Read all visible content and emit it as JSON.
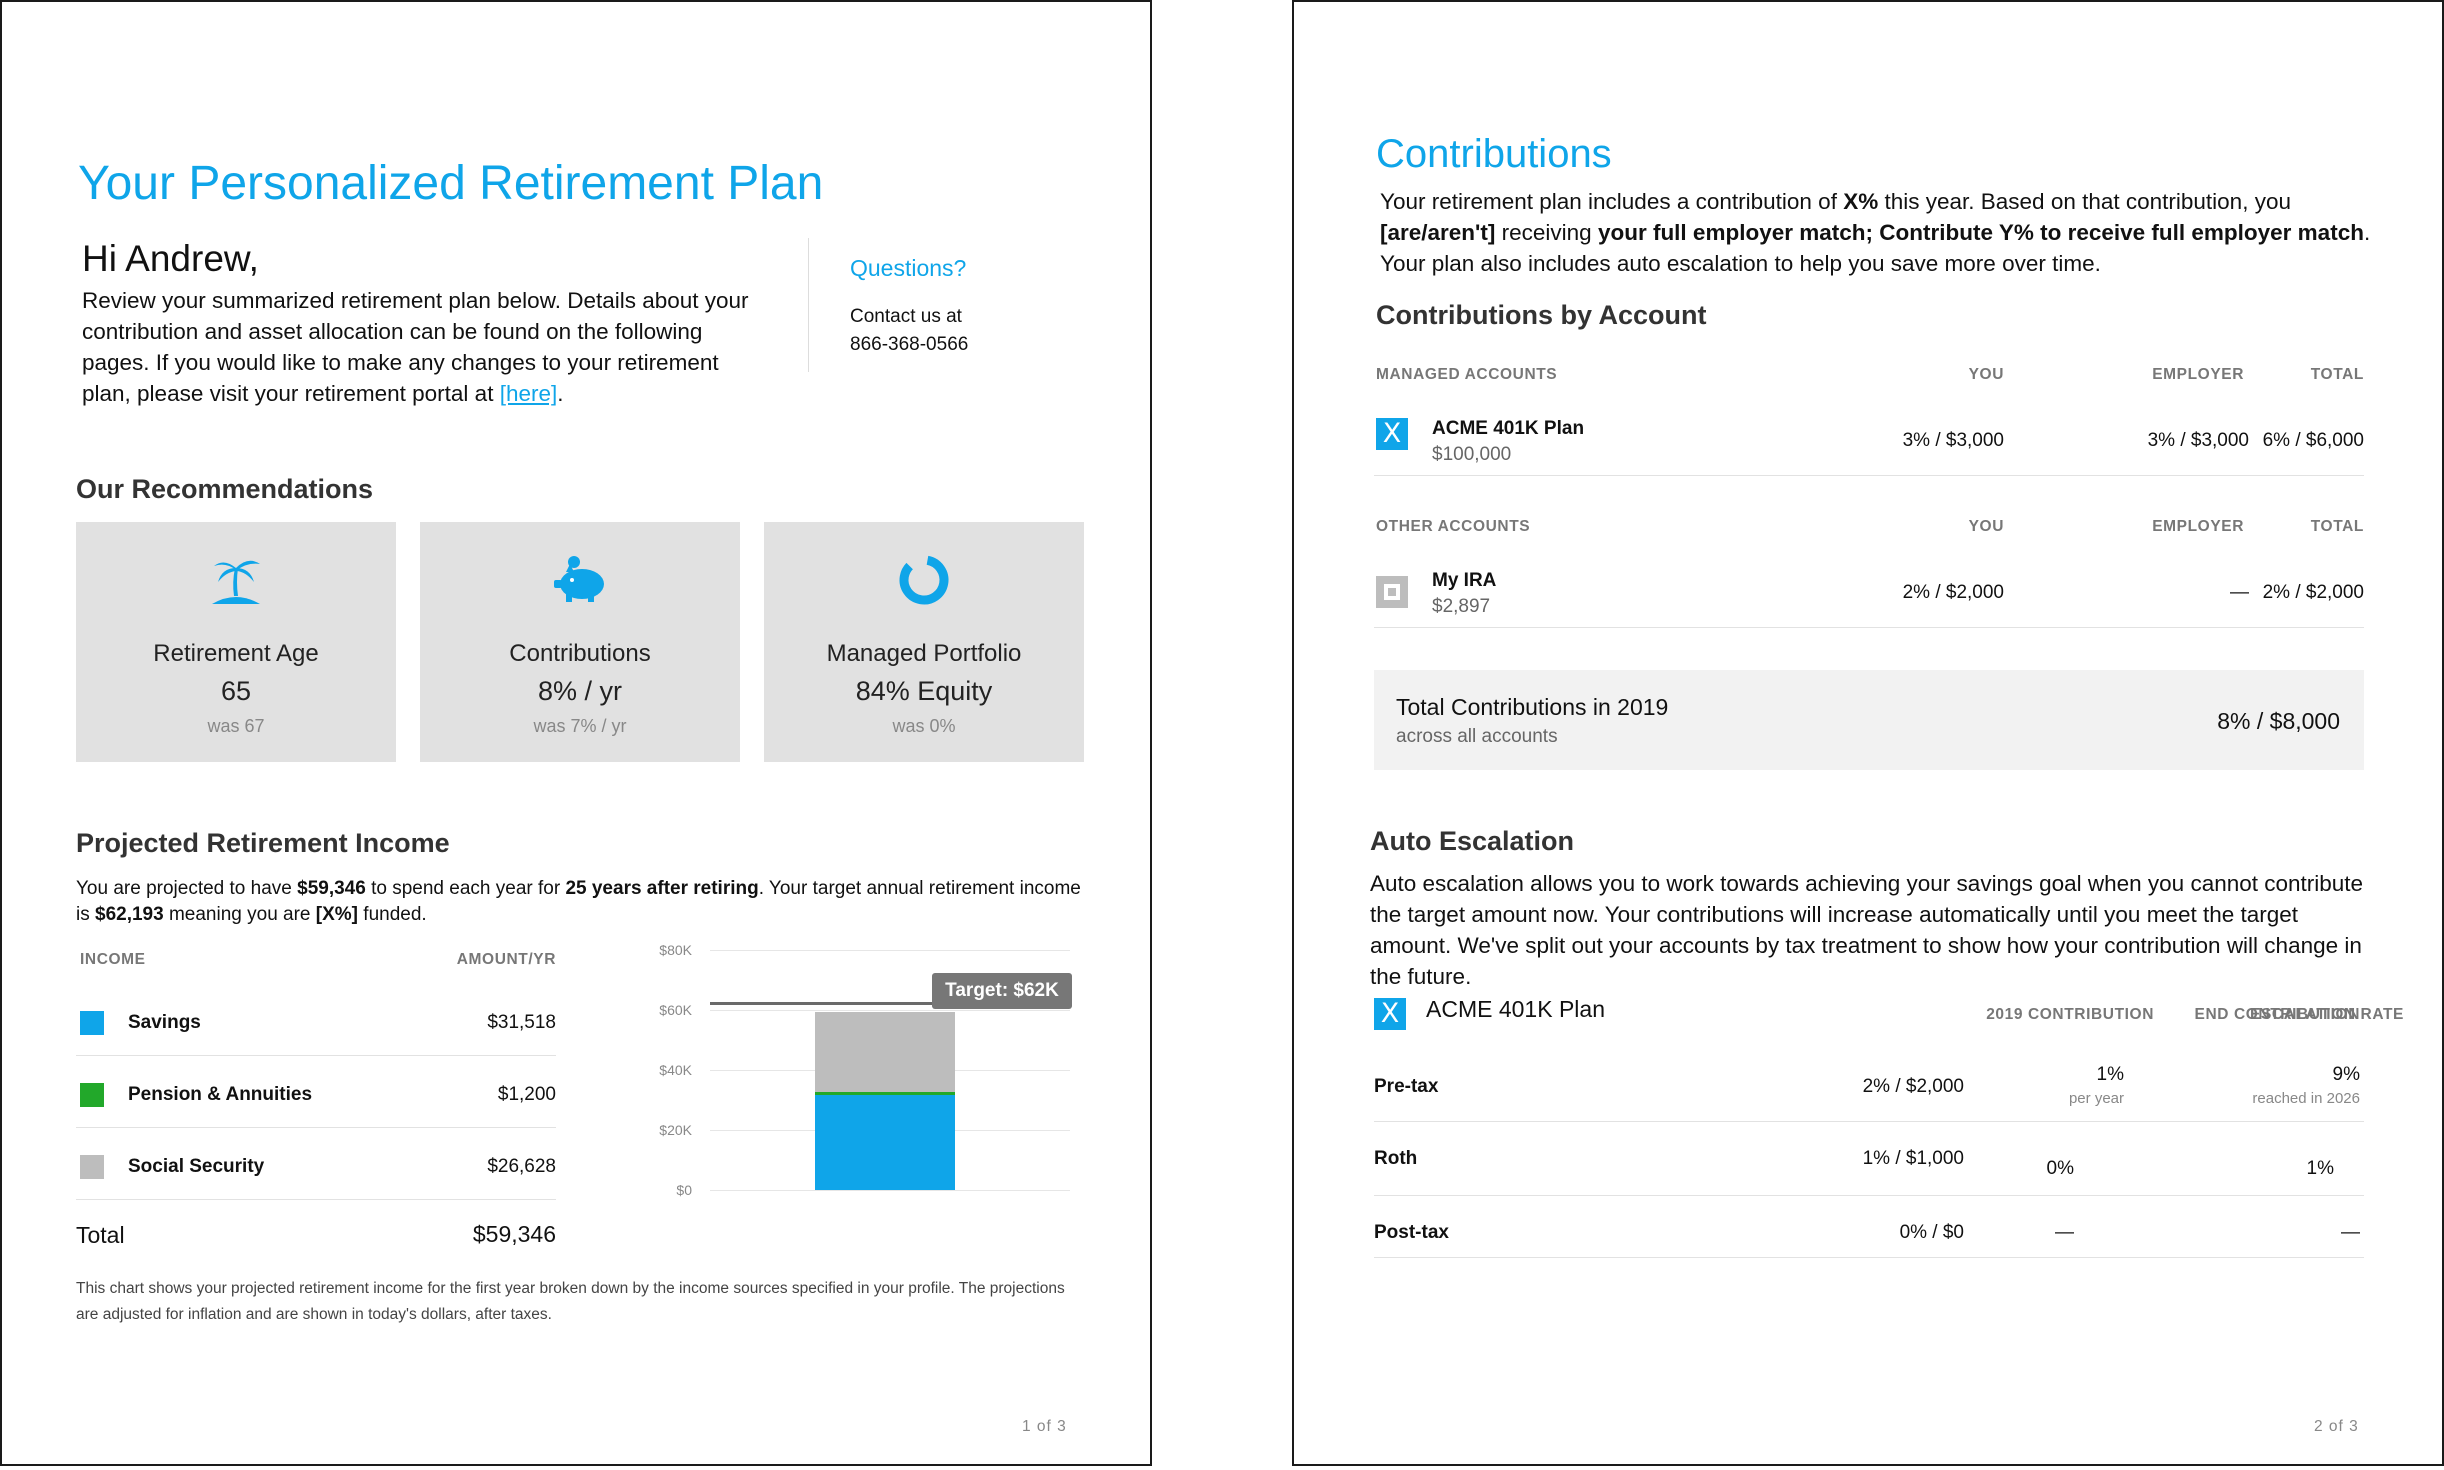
{
  "page1": {
    "title": "Your Personalized Retirement Plan",
    "greeting": "Hi Andrew,",
    "intro_text": "Review your summarized retirement plan below. Details about your contribution and asset allocation can be found on the following pages. If you would like to make any changes to your retirement plan, please visit your retirement portal at ",
    "intro_link": "[here]",
    "intro_end": ".",
    "questions": {
      "heading": "Questions?",
      "line1": "Contact us at",
      "phone": "866-368-0566"
    },
    "recommendations": {
      "heading": "Our Recommendations",
      "cards": [
        {
          "icon": "palm-tree-icon",
          "label": "Retirement Age",
          "value": "65",
          "was": "was 67"
        },
        {
          "icon": "piggy-bank-icon",
          "label": "Contributions",
          "value": "8% / yr",
          "was": "was 7% / yr"
        },
        {
          "icon": "donut-chart-icon",
          "label": "Managed Portfolio",
          "value": "84% Equity",
          "was": "was 0%"
        }
      ]
    },
    "income": {
      "heading": "Projected Retirement Income",
      "desc": {
        "p1": "You are projected to have ",
        "amount": "$59,346",
        "p2": " to spend each year for ",
        "years": "25 years after retiring",
        "p3": ". Your target annual retirement income is ",
        "target": "$62,193",
        "p4": " meaning you are ",
        "funded": "[X%]",
        "p5": " funded."
      },
      "col_income": "INCOME",
      "col_amount": "AMOUNT/YR",
      "rows": [
        {
          "name": "Savings",
          "amount": "$31,518",
          "color": "#0fa5e9"
        },
        {
          "name": "Pension & Annuities",
          "amount": "$1,200",
          "color": "#22a82a"
        },
        {
          "name": "Social Security",
          "amount": "$26,628",
          "color": "#bdbdbd"
        }
      ],
      "total_label": "Total",
      "total_value": "$59,346",
      "footnote": "This chart shows your projected retirement income for the first year broken down by the income sources specified in your profile. The projections are adjusted for inflation and are shown in today's dollars, after taxes."
    },
    "page_number": "1 of 3"
  },
  "chart_data": {
    "type": "bar",
    "categories": [
      ""
    ],
    "series": [
      {
        "name": "Savings",
        "values": [
          31518
        ],
        "color": "#0fa5e9"
      },
      {
        "name": "Pension & Annuities",
        "values": [
          1200
        ],
        "color": "#22a82a"
      },
      {
        "name": "Social Security",
        "values": [
          26628
        ],
        "color": "#bdbdbd"
      }
    ],
    "stacked": true,
    "yticks": [
      "$0",
      "$20K",
      "$40K",
      "$60K",
      "$80K"
    ],
    "ylim": [
      0,
      80000
    ],
    "target_value": 62193,
    "target_label": "Target: $62K",
    "grid": true
  },
  "page2": {
    "title": "Contributions",
    "intro": {
      "p1": "Your retirement plan includes a contribution of ",
      "x": "X%",
      "p2": " this year. Based on that contribution, you ",
      "are": "[are/aren't]",
      "p3": " receiving ",
      "match": "your full employer match; Contribute Y% to receive full employer match",
      "p4": ". Your plan also includes auto escalation to help you save more over time."
    },
    "by_account": {
      "heading": "Contributions by Account",
      "managed_header": {
        "name": "MANAGED ACCOUNTS",
        "you": "YOU",
        "employer": "EMPLOYER",
        "total": "TOTAL"
      },
      "managed": {
        "name": "ACME 401K Plan",
        "balance": "$100,000",
        "you": "3% / $3,000",
        "employer": "3% / $3,000",
        "total": "6% / $6,000",
        "badge": "X"
      },
      "other_header": {
        "name": "OTHER ACCOUNTS",
        "you": "YOU",
        "employer": "EMPLOYER",
        "total": "TOTAL"
      },
      "other": {
        "name": "My IRA",
        "balance": "$2,897",
        "you": "2% / $2,000",
        "employer": "—",
        "total": "2% / $2,000"
      },
      "total_label": "Total Contributions in 2019",
      "total_sub": "across all accounts",
      "total_value": "8% / $8,000"
    },
    "escalation": {
      "heading": "Auto Escalation",
      "desc": "Auto escalation allows you to work towards achieving your savings goal when you cannot contribute the target amount now. Your contributions will increase automatically until you meet the target amount. We've split out your accounts by tax treatment to show how your contribution will change in the future.",
      "plan_name": "ACME 401K Plan",
      "badge": "X",
      "col_contrib": "2019 CONTRIBUTION",
      "col_rate": "ESCALATION RATE",
      "col_end": "END CONTRIBUTION",
      "rows": [
        {
          "name": "Pre-tax",
          "contrib": "2% / $2,000",
          "rate": "1%",
          "rate_sub": "per year",
          "end": "9%",
          "end_sub": "reached in 2026"
        },
        {
          "name": "Roth",
          "contrib": "1% / $1,000",
          "rate": "0%",
          "rate_sub": "",
          "end": "1%",
          "end_sub": ""
        },
        {
          "name": "Post-tax",
          "contrib": "0% / $0",
          "rate": "—",
          "rate_sub": "",
          "end": "—",
          "end_sub": ""
        }
      ]
    },
    "page_number": "2 of 3"
  }
}
